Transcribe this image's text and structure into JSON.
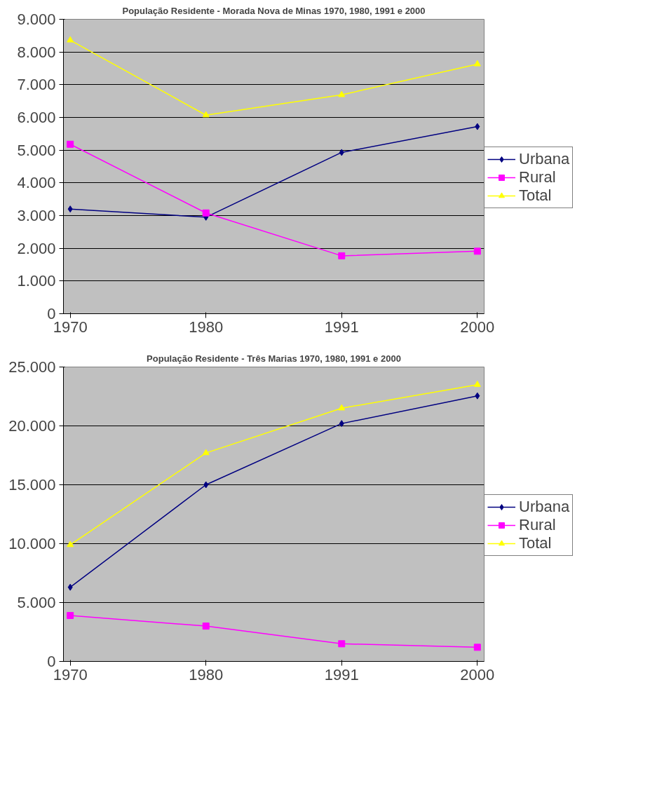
{
  "chart_data": [
    {
      "type": "line",
      "title": "População Residente - Morada Nova de Minas 1970, 1980, 1991 e 2000",
      "categories": [
        "1970",
        "1980",
        "1991",
        "2000"
      ],
      "series": [
        {
          "name": "Urbana",
          "color": "#000080",
          "marker": "diamond",
          "values": [
            3200,
            2950,
            4930,
            5720
          ]
        },
        {
          "name": "Rural",
          "color": "#ff00ff",
          "marker": "square",
          "values": [
            5180,
            3080,
            1770,
            1910
          ]
        },
        {
          "name": "Total",
          "color": "#ffff00",
          "marker": "triangle",
          "values": [
            8360,
            6070,
            6690,
            7630
          ]
        }
      ],
      "ylim": [
        0,
        9000
      ],
      "yticks": [
        {
          "value": 0,
          "label": "0"
        },
        {
          "value": 1000,
          "label": "1.000"
        },
        {
          "value": 2000,
          "label": "2.000"
        },
        {
          "value": 3000,
          "label": "3.000"
        },
        {
          "value": 4000,
          "label": "4.000"
        },
        {
          "value": 5000,
          "label": "5.000"
        },
        {
          "value": 6000,
          "label": "6.000"
        },
        {
          "value": 7000,
          "label": "7.000"
        },
        {
          "value": 8000,
          "label": "8.000"
        },
        {
          "value": 9000,
          "label": "9.000"
        }
      ],
      "grid": "y",
      "legend": "right"
    },
    {
      "type": "line",
      "title": "População Residente - Três Marias 1970, 1980, 1991 e 2000",
      "categories": [
        "1970",
        "1980",
        "1991",
        "2000"
      ],
      "series": [
        {
          "name": "Urbana",
          "color": "#000080",
          "marker": "diamond",
          "values": [
            6300,
            15000,
            20200,
            22550
          ]
        },
        {
          "name": "Rural",
          "color": "#ff00ff",
          "marker": "square",
          "values": [
            3900,
            3000,
            1500,
            1200
          ]
        },
        {
          "name": "Total",
          "color": "#ffff00",
          "marker": "triangle",
          "values": [
            9900,
            17700,
            21500,
            23500
          ]
        }
      ],
      "ylim": [
        0,
        25000
      ],
      "yticks": [
        {
          "value": 0,
          "label": "0"
        },
        {
          "value": 5000,
          "label": "5.000"
        },
        {
          "value": 10000,
          "label": "10.000"
        },
        {
          "value": 15000,
          "label": "15.000"
        },
        {
          "value": 20000,
          "label": "20.000"
        },
        {
          "value": 25000,
          "label": "25.000"
        }
      ],
      "grid": "y",
      "legend": "right"
    }
  ]
}
